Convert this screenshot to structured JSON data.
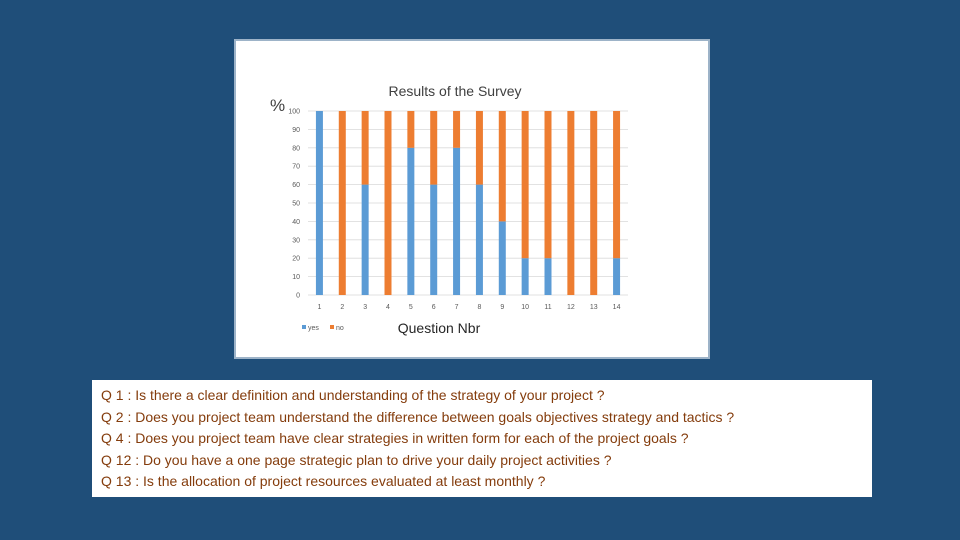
{
  "colors": {
    "background": "#1f4e79",
    "yes": "#5b9bd5",
    "no": "#ed7d31",
    "question_text": "#843c0c"
  },
  "chart_data": {
    "type": "bar",
    "stacked": true,
    "title": "Results of the Survey",
    "ylabel": "%",
    "xlabel": "Question Nbr",
    "categories": [
      "1",
      "2",
      "3",
      "4",
      "5",
      "6",
      "7",
      "8",
      "9",
      "10",
      "11",
      "12",
      "13",
      "14"
    ],
    "series": [
      {
        "name": "yes",
        "color": "#5b9bd5",
        "values": [
          100,
          0,
          60,
          0,
          80,
          60,
          80,
          60,
          40,
          20,
          20,
          0,
          0,
          20
        ]
      },
      {
        "name": "no",
        "color": "#ed7d31",
        "values": [
          0,
          100,
          40,
          100,
          20,
          40,
          20,
          40,
          60,
          80,
          80,
          100,
          100,
          80
        ]
      }
    ],
    "ylim": [
      0,
      100
    ],
    "yticks": [
      0,
      10,
      20,
      30,
      40,
      50,
      60,
      70,
      80,
      90,
      100
    ],
    "grid": true,
    "legend_position": "bottom-left"
  },
  "questions": [
    "Q 1 : Is there a clear definition and understanding of the strategy of your project ?",
    "Q 2 : Does you project team understand the difference between goals objectives strategy and tactics  ?",
    "Q 4 : Does you project team have clear strategies in written form for each of the project goals ?",
    "Q 12 : Do you have a one page strategic plan to drive your daily project activities ?",
    "Q 13 : Is the allocation of project resources evaluated at least monthly ?"
  ]
}
